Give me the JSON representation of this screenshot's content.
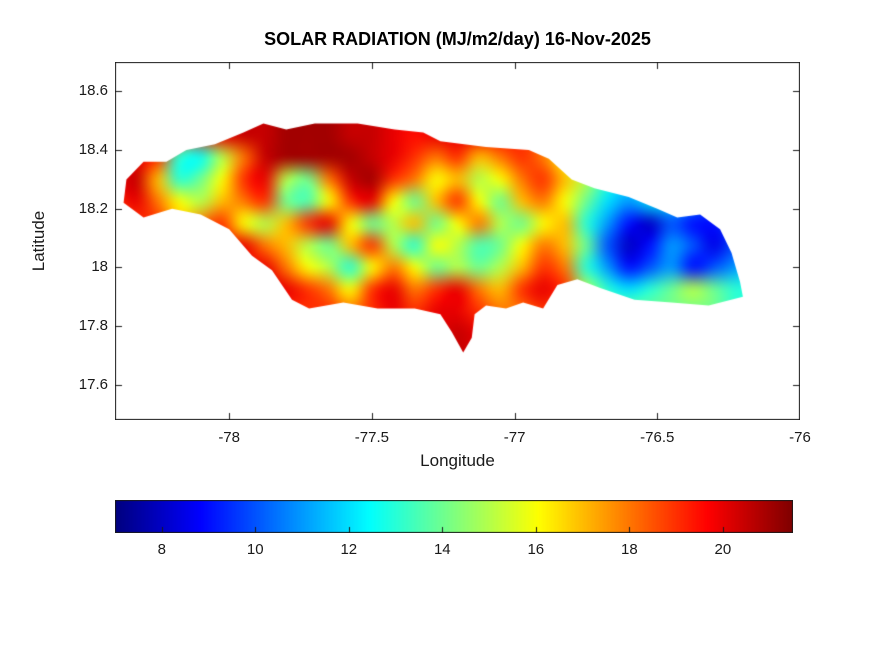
{
  "chart_data": {
    "type": "heatmap",
    "title": "SOLAR RADIATION (MJ/m2/day) 16-Nov-2025",
    "xlabel": "Longitude",
    "ylabel": "Latitude",
    "units": "MJ/m2/day",
    "xlim": [
      -78.4,
      -76.0
    ],
    "ylim": [
      17.48,
      18.7
    ],
    "xticks": [
      -78,
      -77.5,
      -77,
      -76.5,
      -76
    ],
    "xtick_labels": [
      "-78",
      "-77.5",
      "-77",
      "-76.5",
      "-76"
    ],
    "yticks": [
      17.6,
      17.8,
      18,
      18.2,
      18.4,
      18.6
    ],
    "ytick_labels": [
      "17.6",
      "17.8",
      "18",
      "18.2",
      "18.4",
      "18.6"
    ],
    "colormap": "jet",
    "clim": [
      7,
      21.5
    ],
    "grid_lines": false,
    "colorbar": {
      "orientation": "horizontal",
      "position": "bottom",
      "ticks": [
        8,
        10,
        12,
        14,
        16,
        18,
        20
      ],
      "tick_labels": [
        "8",
        "10",
        "12",
        "14",
        "16",
        "18",
        "20"
      ]
    },
    "grid": {
      "lon_start": -78.4,
      "lon_step": 0.075,
      "ncols": 31,
      "lat_start": 18.6,
      "lat_step": -0.075,
      "nrows": 14,
      "values": [
        [
          19,
          19,
          19,
          18,
          19,
          20,
          20.5,
          20.5,
          21,
          21,
          21,
          20.5,
          20.5,
          20,
          19.5,
          20,
          20,
          20,
          19.5,
          19,
          18,
          17,
          15,
          14,
          13,
          12,
          12,
          11,
          11,
          12,
          12
        ],
        [
          19,
          19,
          19,
          18,
          19,
          20,
          20.5,
          20.5,
          21,
          21,
          21,
          20.5,
          20.5,
          20,
          19.5,
          20,
          20,
          20,
          19.5,
          19,
          18,
          17,
          15,
          14,
          13,
          12,
          12,
          11,
          11,
          12,
          12
        ],
        [
          19,
          19,
          19,
          18,
          19,
          20,
          20.5,
          20.5,
          21,
          21,
          21,
          20.5,
          20.5,
          20,
          19.5,
          20,
          20,
          20,
          19.5,
          19,
          18,
          17,
          15,
          14,
          13,
          12,
          12,
          11,
          11,
          12,
          12
        ],
        [
          19.5,
          20,
          19,
          13,
          12.5,
          15,
          18,
          20.5,
          21,
          21,
          21,
          21,
          20.5,
          20,
          19,
          18,
          19,
          17,
          18,
          19,
          18,
          16,
          15,
          13.5,
          13,
          12,
          11.5,
          11,
          11,
          11.5,
          12
        ],
        [
          20,
          20.5,
          17,
          13,
          14,
          16,
          19,
          20,
          15,
          14,
          18,
          20.5,
          21,
          19,
          18,
          16,
          17,
          15,
          16,
          18,
          19,
          17,
          15,
          13,
          12,
          12,
          13,
          12,
          11,
          12,
          12
        ],
        [
          19,
          20,
          18,
          16,
          15,
          17,
          18,
          19,
          14,
          13.5,
          16,
          19,
          20,
          16,
          14,
          17,
          19,
          16,
          14,
          17,
          18,
          16,
          14,
          12,
          11,
          12,
          12,
          11,
          10,
          11,
          11
        ],
        [
          18,
          19,
          19,
          17,
          18,
          19,
          16,
          15,
          17,
          19,
          20,
          16,
          14,
          15,
          17,
          14,
          16,
          18,
          15,
          14,
          16,
          17,
          13,
          11,
          9,
          8,
          10,
          9,
          9,
          10,
          11
        ],
        [
          19,
          19,
          19,
          19,
          19,
          19,
          20,
          18,
          17,
          15,
          14,
          17,
          19,
          15,
          13,
          16,
          15,
          13.5,
          14,
          16,
          18,
          17,
          14,
          10,
          8,
          9,
          11,
          10,
          8.5,
          10,
          11
        ],
        [
          18,
          18,
          18,
          18,
          18,
          18,
          19,
          20,
          18,
          16,
          15,
          13,
          16,
          18,
          16,
          14,
          15,
          14,
          15,
          17,
          19,
          18,
          13,
          11,
          9,
          10,
          11,
          9,
          10,
          11,
          12
        ],
        [
          19,
          19,
          19,
          19,
          19,
          19,
          19,
          20,
          20,
          19,
          18,
          16,
          19,
          20,
          18,
          19,
          20,
          18,
          17,
          19,
          20,
          19,
          15,
          13,
          12,
          13,
          14,
          15,
          14,
          13,
          13
        ],
        [
          19,
          19,
          19,
          19,
          19,
          19,
          19,
          19,
          19,
          19,
          19,
          18,
          19,
          20,
          19,
          20,
          20,
          19,
          18,
          18,
          19,
          18,
          15,
          14,
          14,
          14,
          14,
          14,
          14,
          13,
          13
        ],
        [
          19,
          19,
          19,
          19,
          19,
          19,
          19,
          19,
          19,
          19,
          19,
          18,
          19,
          20,
          19,
          20,
          20.5,
          20,
          19,
          18,
          19,
          18,
          15,
          14,
          14,
          14,
          14,
          14,
          14,
          13,
          13
        ],
        [
          19,
          19,
          19,
          19,
          19,
          19,
          19,
          19,
          19,
          19,
          19,
          18,
          19,
          20,
          20,
          20,
          20.5,
          20,
          19,
          18,
          19,
          18,
          15,
          14,
          14,
          14,
          14,
          14,
          14,
          13,
          13
        ],
        [
          19,
          19,
          19,
          19,
          19,
          19,
          19,
          19,
          19,
          19,
          19,
          18,
          19,
          20,
          20,
          20,
          20.5,
          20,
          19,
          18,
          19,
          18,
          15,
          14,
          14,
          14,
          14,
          14,
          14,
          13,
          13
        ]
      ]
    },
    "outline_lonlat": [
      [
        -78.37,
        18.22
      ],
      [
        -78.36,
        18.3
      ],
      [
        -78.3,
        18.36
      ],
      [
        -78.22,
        18.36
      ],
      [
        -78.15,
        18.4
      ],
      [
        -78.05,
        18.42
      ],
      [
        -77.95,
        18.46
      ],
      [
        -77.88,
        18.49
      ],
      [
        -77.8,
        18.47
      ],
      [
        -77.7,
        18.49
      ],
      [
        -77.55,
        18.49
      ],
      [
        -77.42,
        18.47
      ],
      [
        -77.32,
        18.46
      ],
      [
        -77.26,
        18.43
      ],
      [
        -77.1,
        18.41
      ],
      [
        -76.95,
        18.4
      ],
      [
        -76.88,
        18.37
      ],
      [
        -76.8,
        18.3
      ],
      [
        -76.72,
        18.27
      ],
      [
        -76.6,
        18.24
      ],
      [
        -76.5,
        18.2
      ],
      [
        -76.43,
        18.17
      ],
      [
        -76.35,
        18.18
      ],
      [
        -76.28,
        18.13
      ],
      [
        -76.24,
        18.05
      ],
      [
        -76.21,
        17.95
      ],
      [
        -76.2,
        17.9
      ],
      [
        -76.32,
        17.87
      ],
      [
        -76.45,
        17.88
      ],
      [
        -76.58,
        17.89
      ],
      [
        -76.7,
        17.93
      ],
      [
        -76.78,
        17.96
      ],
      [
        -76.85,
        17.94
      ],
      [
        -76.9,
        17.86
      ],
      [
        -76.97,
        17.88
      ],
      [
        -77.03,
        17.86
      ],
      [
        -77.1,
        17.87
      ],
      [
        -77.14,
        17.84
      ],
      [
        -77.15,
        17.76
      ],
      [
        -77.18,
        17.71
      ],
      [
        -77.22,
        17.78
      ],
      [
        -77.26,
        17.84
      ],
      [
        -77.35,
        17.86
      ],
      [
        -77.48,
        17.86
      ],
      [
        -77.6,
        17.88
      ],
      [
        -77.72,
        17.86
      ],
      [
        -77.78,
        17.89
      ],
      [
        -77.85,
        17.99
      ],
      [
        -77.92,
        18.04
      ],
      [
        -78.0,
        18.13
      ],
      [
        -78.1,
        18.18
      ],
      [
        -78.2,
        18.2
      ],
      [
        -78.3,
        18.17
      ]
    ]
  }
}
